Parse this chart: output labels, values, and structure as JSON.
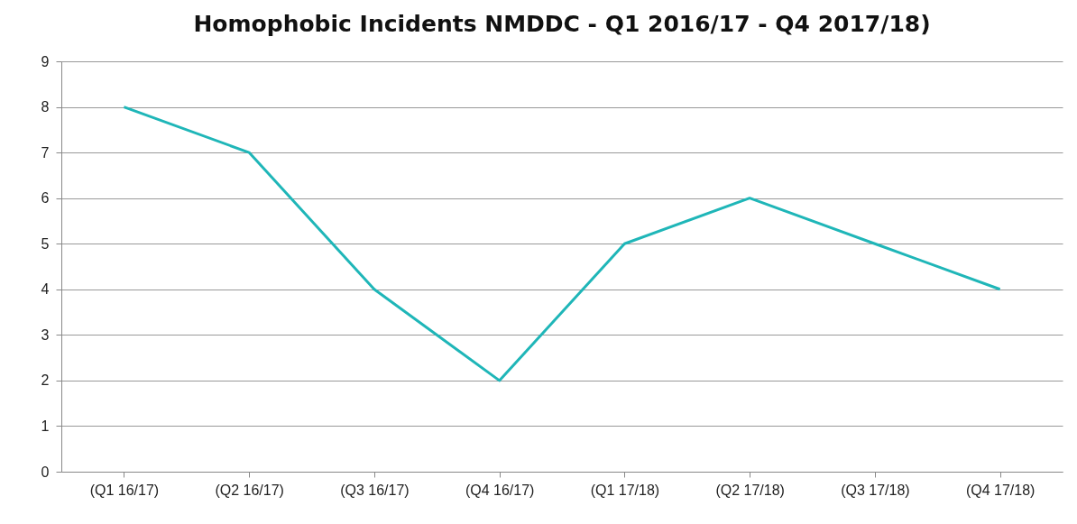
{
  "chart_data": {
    "type": "line",
    "title": "Homophobic Incidents NMDDC - Q1 2016/17 - Q4 2017/18)",
    "categories": [
      "(Q1 16/17)",
      "(Q2 16/17)",
      "(Q3 16/17)",
      "(Q4 16/17)",
      "(Q1 17/18)",
      "(Q2 17/18)",
      "(Q3 17/18)",
      "(Q4 17/18)"
    ],
    "series": [
      {
        "color": "#1fb6b8",
        "values": [
          8,
          7,
          4,
          2,
          5,
          6,
          5,
          4
        ]
      }
    ],
    "ylim": [
      0,
      9
    ],
    "yticks": [
      0,
      1,
      2,
      3,
      4,
      5,
      6,
      7,
      8,
      9
    ],
    "grid": "y",
    "marker": "none",
    "line_style": "solid"
  }
}
